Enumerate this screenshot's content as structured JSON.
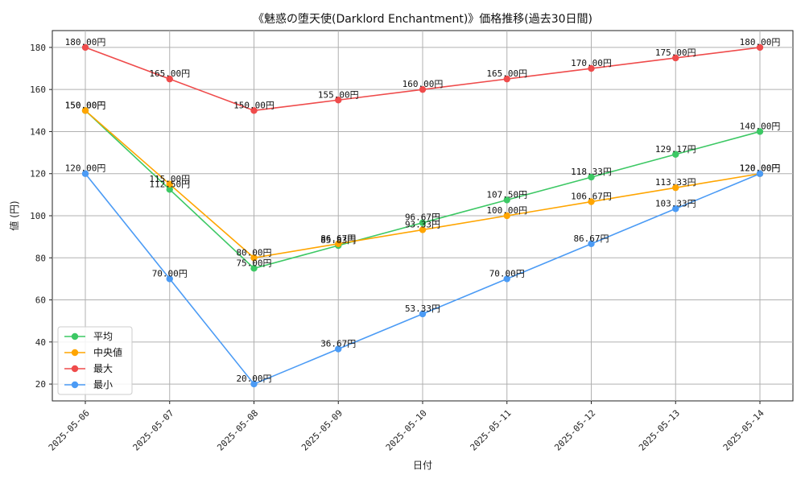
{
  "chart_data": {
    "type": "line",
    "title": "《魅惑の堕天使(Darklord Enchantment)》価格推移(過去30日間)",
    "xlabel": "日付",
    "ylabel": "値 (円)",
    "value_suffix": "円",
    "categories": [
      "2025-05-06",
      "2025-05-07",
      "2025-05-08",
      "2025-05-09",
      "2025-05-10",
      "2025-05-11",
      "2025-05-12",
      "2025-05-13",
      "2025-05-14"
    ],
    "ylim": [
      12,
      188
    ],
    "yticks": [
      20,
      40,
      60,
      80,
      100,
      120,
      140,
      160,
      180
    ],
    "grid": true,
    "legend_position": "bottom-left",
    "series": [
      {
        "name": "平均",
        "color": "#3cc864",
        "values": [
          150.0,
          112.5,
          75.0,
          85.83,
          96.67,
          107.5,
          118.33,
          129.17,
          140.0
        ]
      },
      {
        "name": "中央値",
        "color": "#ffa500",
        "values": [
          150.0,
          115.0,
          80.0,
          86.67,
          93.33,
          100.0,
          106.67,
          113.33,
          120.0
        ]
      },
      {
        "name": "最大",
        "color": "#ef4b4b",
        "values": [
          180.0,
          165.0,
          150.0,
          155.0,
          160.0,
          165.0,
          170.0,
          175.0,
          180.0
        ]
      },
      {
        "name": "最小",
        "color": "#4b9bf5",
        "values": [
          120.0,
          70.0,
          20.0,
          36.67,
          53.33,
          70.0,
          86.67,
          103.33,
          120.0
        ]
      }
    ]
  }
}
